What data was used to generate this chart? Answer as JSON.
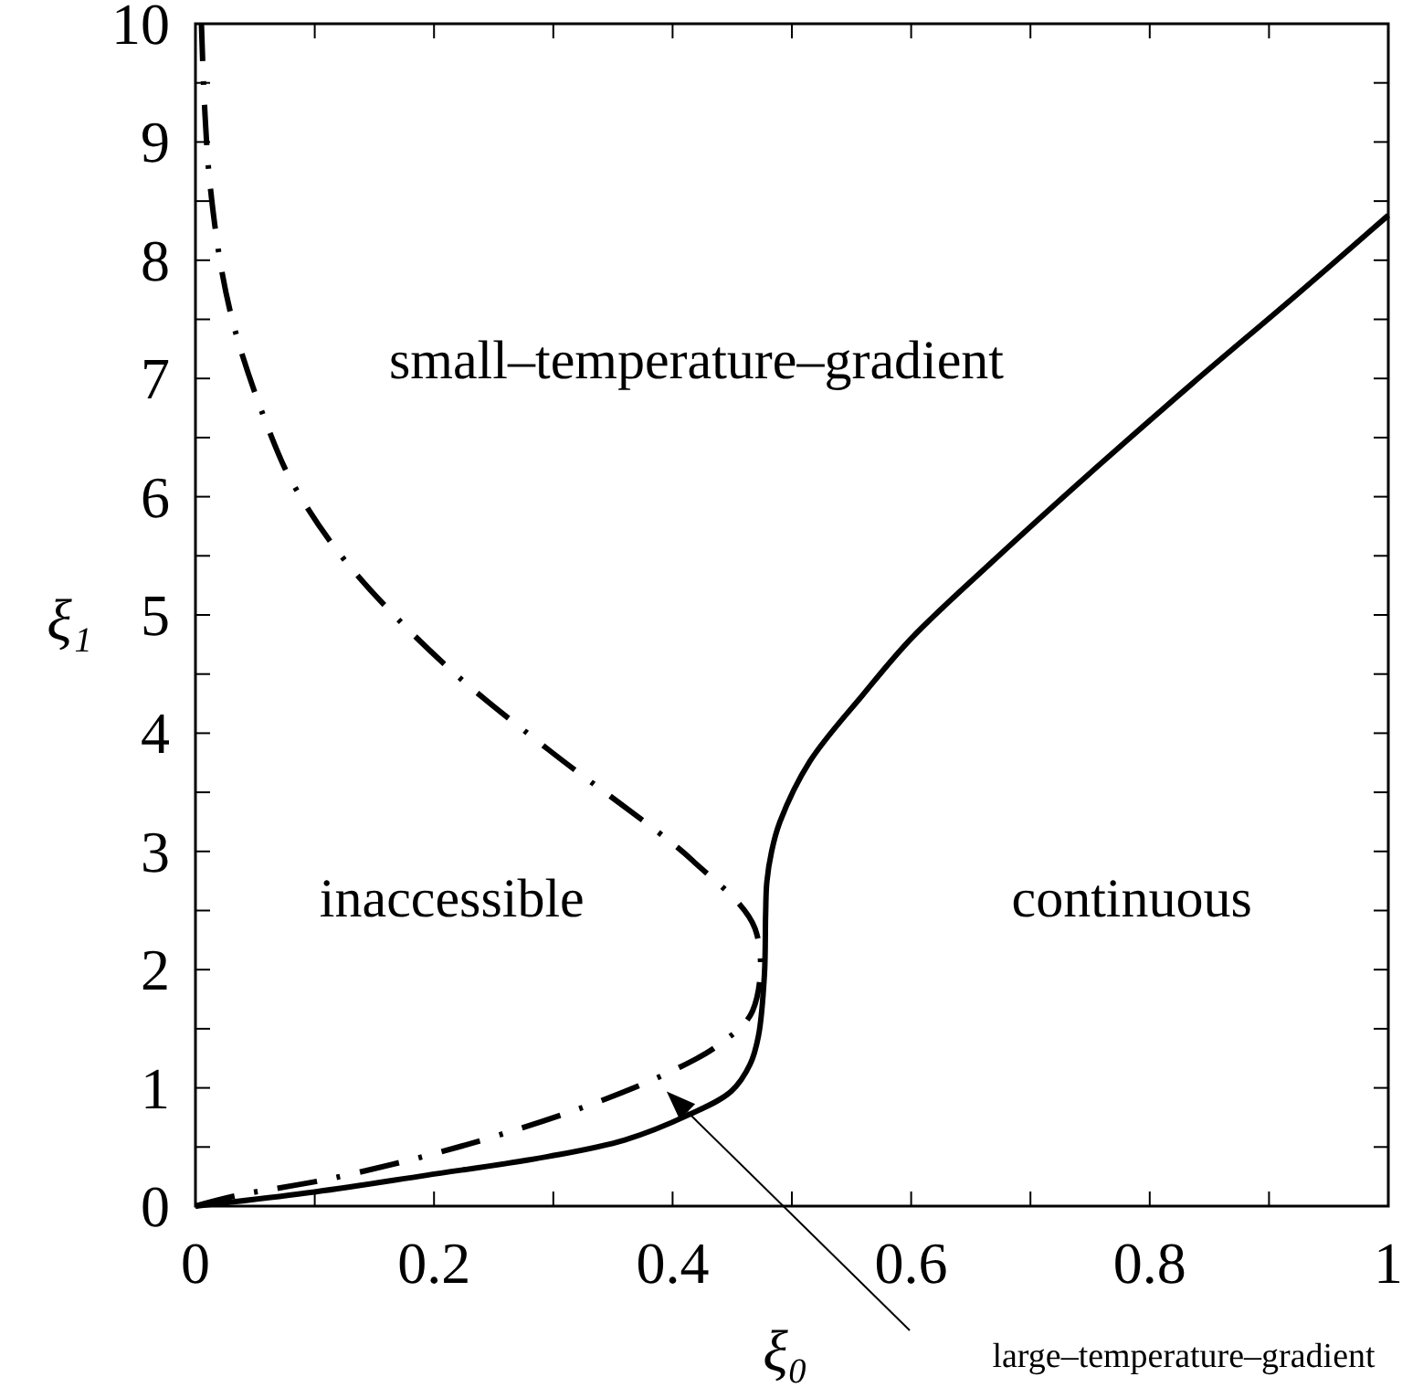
{
  "chart_data": {
    "type": "line",
    "xlabel": "ξ₀",
    "ylabel": "ξ₁",
    "xlim": [
      0,
      1
    ],
    "ylim": [
      0,
      10
    ],
    "xticks": [
      0,
      {
        "value": 0.1,
        "label": null
      },
      0.2,
      {
        "value": 0.3,
        "label": null
      },
      0.4,
      {
        "value": 0.5,
        "label": null
      },
      0.6,
      {
        "value": 0.7,
        "label": null
      },
      0.8,
      {
        "value": 0.9,
        "label": null
      },
      1
    ],
    "yticks": [
      0,
      {
        "value": 0.5,
        "label": null
      },
      1,
      {
        "value": 1.5,
        "label": null
      },
      2,
      {
        "value": 2.5,
        "label": null
      },
      3,
      {
        "value": 3.5,
        "label": null
      },
      4,
      {
        "value": 4.5,
        "label": null
      },
      5,
      {
        "value": 5.5,
        "label": null
      },
      6,
      {
        "value": 6.5,
        "label": null
      },
      7,
      {
        "value": 7.5,
        "label": null
      },
      8,
      {
        "value": 8.5,
        "label": null
      },
      9,
      {
        "value": 9.5,
        "label": null
      },
      10
    ],
    "grid": false,
    "marker": "none",
    "series": [
      {
        "color": "#000000",
        "line_style": "solid",
        "x": [
          0,
          0.1,
          0.193,
          0.296,
          0.36,
          0.413,
          0.449,
          0.465,
          0.472,
          0.477,
          0.478,
          0.479,
          0.483,
          0.49,
          0.515,
          0.56,
          0.6,
          0.668,
          0.75,
          0.836,
          0.92,
          1
        ],
        "values": [
          0,
          0.12,
          0.26,
          0.42,
          0.56,
          0.77,
          0.97,
          1.2,
          1.44,
          1.96,
          2.47,
          2.74,
          3.0,
          3.25,
          3.76,
          4.33,
          4.8,
          5.45,
          6.2,
          6.96,
          7.68,
          8.38
        ]
      },
      {
        "color": "#000000",
        "line_style": "dashdot",
        "x": [
          0,
          0.035,
          0.112,
          0.224,
          0.337,
          0.403,
          0.438,
          0.467,
          0.469,
          0.417,
          0.387,
          0.296,
          0.208,
          0.127,
          0.084,
          0.066,
          0.03,
          0.012,
          0.005
        ],
        "values": [
          0,
          0.09,
          0.23,
          0.51,
          0.88,
          1.16,
          1.36,
          1.65,
          2.35,
          2.92,
          3.17,
          3.86,
          4.59,
          5.44,
          6.07,
          6.45,
          7.53,
          8.66,
          10
        ]
      }
    ],
    "annotations": [
      "small–temperature–gradient",
      "inaccessible",
      "continuous",
      "large–temperature–gradient"
    ]
  }
}
